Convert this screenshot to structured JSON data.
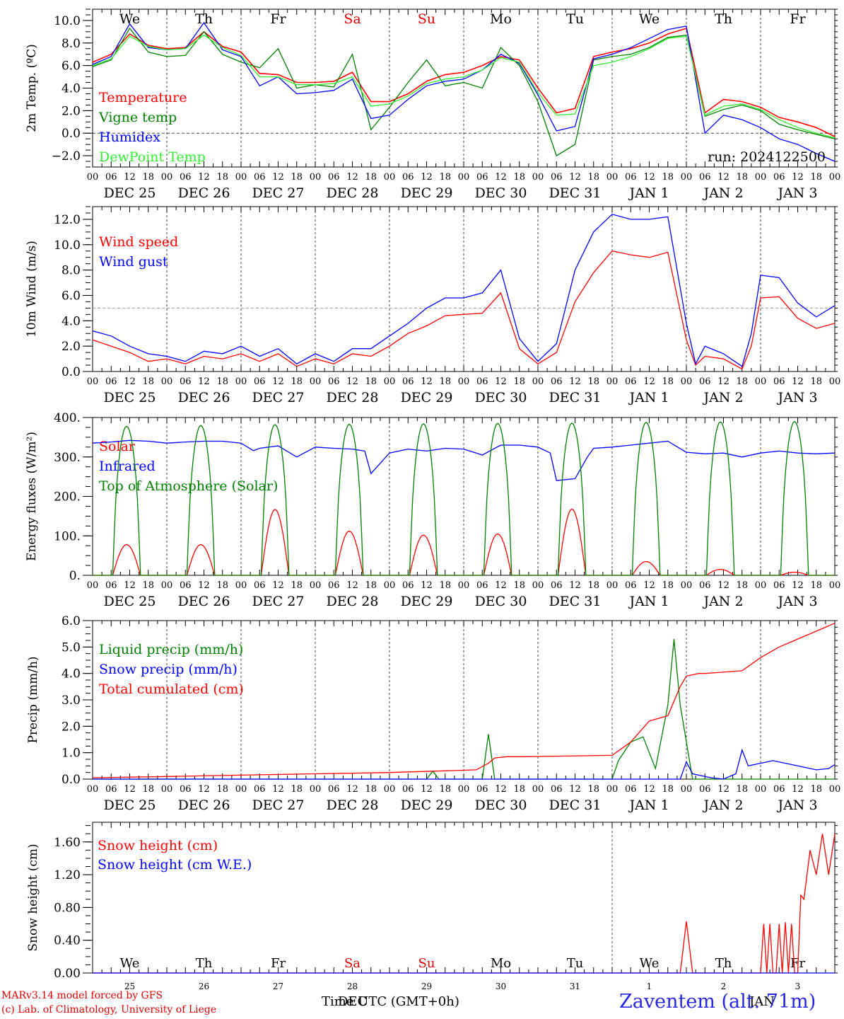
{
  "x_axis": {
    "day_labels": [
      "We",
      "Th",
      "Fr",
      "Sa",
      "Su",
      "Mo",
      "Tu",
      "We",
      "Th",
      "Fr"
    ],
    "day_colors": [
      "#000000",
      "#000000",
      "#000000",
      "#e00000",
      "#e00000",
      "#000000",
      "#000000",
      "#000000",
      "#000000",
      "#000000"
    ],
    "hour_ticks": [
      "00",
      "06",
      "12",
      "18"
    ],
    "hour_end": "00",
    "dates": [
      "DEC 25",
      "DEC 26",
      "DEC 27",
      "DEC 28",
      "DEC 29",
      "DEC 30",
      "DEC 31",
      "JAN 1",
      "JAN 2",
      "JAN 3"
    ],
    "day_numbers": [
      "25",
      "26",
      "27",
      "28",
      "29",
      "30",
      "31",
      "1",
      "2",
      "3"
    ],
    "xlabel": "Time UTC (GMT+0h)",
    "month_label_dec": "DEC",
    "month_label_jan": "JAN"
  },
  "footer": {
    "credit_line1": "MARv3.14 model forced by GFS",
    "credit_line2": "(c) Lab. of Climatology, University of Liege",
    "station": "Zaventem (alt. 71m)"
  },
  "colors": {
    "red": "#ff0000",
    "green": "#008000",
    "blue": "#0000ff",
    "lightgreen": "#33ee33",
    "grey": "#999999"
  },
  "chart_data": [
    {
      "type": "line",
      "ylabel": "2m Temp. (ºC)",
      "ylim": [
        -3.0,
        11.0
      ],
      "yticks": [
        -2.0,
        0.0,
        2.0,
        4.0,
        6.0,
        8.0,
        10.0
      ],
      "ytick_labels": [
        "−2.0",
        "0.0",
        "2.0",
        "4.0",
        "6.0",
        "8.0",
        "10.0"
      ],
      "annotation": "run: 2024122500",
      "hline": 0.0,
      "x_unit": "hours since DEC 25 00 UTC",
      "series": [
        {
          "name": "Temperature",
          "color": "#ff0000",
          "x": [
            0,
            6,
            12,
            18,
            24,
            30,
            36,
            42,
            48,
            54,
            60,
            66,
            72,
            78,
            84,
            90,
            96,
            102,
            108,
            114,
            120,
            126,
            132,
            138,
            144,
            150,
            156,
            162,
            168,
            174,
            180,
            186,
            192,
            198,
            204,
            210,
            216,
            222,
            228,
            234,
            240
          ],
          "y": [
            6.3,
            7.0,
            8.8,
            7.8,
            7.5,
            7.6,
            9.0,
            7.7,
            7.2,
            5.3,
            5.2,
            4.5,
            4.5,
            4.6,
            5.4,
            2.8,
            2.8,
            3.5,
            4.6,
            5.2,
            5.4,
            6.0,
            6.8,
            6.5,
            4.0,
            1.8,
            2.2,
            6.8,
            7.2,
            7.5,
            8.0,
            8.8,
            9.3,
            1.8,
            3.0,
            2.8,
            2.3,
            1.4,
            1.0,
            0.5,
            -0.3
          ]
        },
        {
          "name": "Vigne temp",
          "color": "#008000",
          "x": [
            0,
            6,
            12,
            18,
            24,
            30,
            36,
            42,
            48,
            54,
            60,
            66,
            72,
            78,
            84,
            90,
            96,
            102,
            108,
            114,
            120,
            126,
            132,
            138,
            144,
            150,
            156,
            162,
            168,
            174,
            180,
            186,
            192,
            198,
            204,
            210,
            216,
            222,
            228,
            234,
            240
          ],
          "y": [
            5.9,
            6.5,
            9.3,
            7.2,
            6.8,
            6.9,
            9.0,
            7.0,
            6.3,
            5.8,
            7.5,
            4.0,
            4.3,
            4.1,
            7.0,
            0.3,
            2.3,
            4.5,
            6.5,
            4.2,
            4.5,
            4.0,
            7.6,
            6.0,
            2.8,
            -2.0,
            -1.0,
            6.5,
            6.8,
            7.0,
            7.6,
            8.5,
            8.7,
            1.5,
            2.1,
            2.5,
            2.0,
            0.8,
            0.3,
            -0.1,
            -0.5
          ]
        },
        {
          "name": "Humidex",
          "color": "#0000ff",
          "x": [
            0,
            6,
            12,
            18,
            24,
            30,
            36,
            42,
            48,
            54,
            60,
            66,
            72,
            78,
            84,
            90,
            96,
            102,
            108,
            114,
            120,
            126,
            132,
            138,
            144,
            150,
            156,
            162,
            168,
            174,
            180,
            186,
            192,
            198,
            204,
            210,
            216,
            222,
            228,
            234,
            240
          ],
          "y": [
            6.1,
            6.8,
            9.7,
            7.6,
            7.4,
            7.5,
            9.8,
            7.4,
            6.8,
            4.2,
            5.0,
            3.5,
            3.6,
            3.8,
            4.8,
            1.3,
            1.6,
            3.0,
            4.2,
            4.6,
            4.8,
            5.6,
            7.0,
            6.2,
            3.4,
            0.2,
            0.6,
            6.6,
            7.0,
            7.6,
            8.4,
            9.2,
            9.5,
            0.0,
            1.6,
            1.2,
            0.5,
            -0.5,
            -1.0,
            -1.8,
            -2.5
          ]
        },
        {
          "name": "DewPoint Temp",
          "color": "#33ee33",
          "x": [
            0,
            6,
            12,
            18,
            24,
            30,
            36,
            42,
            48,
            54,
            60,
            66,
            72,
            78,
            84,
            90,
            96,
            102,
            108,
            114,
            120,
            126,
            132,
            138,
            144,
            150,
            156,
            162,
            168,
            174,
            180,
            186,
            192,
            198,
            204,
            210,
            216,
            222,
            228,
            234,
            240
          ],
          "y": [
            6.0,
            6.6,
            8.6,
            7.7,
            7.4,
            7.5,
            8.7,
            7.6,
            6.9,
            5.0,
            5.0,
            4.3,
            4.3,
            4.4,
            5.0,
            2.4,
            2.6,
            3.3,
            4.4,
            4.8,
            5.0,
            5.6,
            6.7,
            6.3,
            3.6,
            1.6,
            1.7,
            6.0,
            6.3,
            6.8,
            7.5,
            8.4,
            8.6,
            1.6,
            2.4,
            2.6,
            2.1,
            1.2,
            0.5,
            0.0,
            -0.4
          ]
        }
      ]
    },
    {
      "type": "line",
      "ylabel": "10m Wind (m/s)",
      "ylim": [
        0.0,
        13.0
      ],
      "yticks": [
        0.0,
        2.0,
        4.0,
        6.0,
        8.0,
        10.0,
        12.0
      ],
      "ytick_labels": [
        "0.0",
        "2.0",
        "4.0",
        "6.0",
        "8.0",
        "10.0",
        "12.0"
      ],
      "hline": 5.0,
      "x_unit": "hours since DEC 25 00 UTC",
      "series": [
        {
          "name": "Wind speed",
          "color": "#ff0000",
          "x": [
            0,
            6,
            12,
            18,
            24,
            30,
            36,
            42,
            48,
            54,
            60,
            66,
            72,
            78,
            84,
            90,
            96,
            102,
            108,
            114,
            120,
            126,
            132,
            138,
            144,
            150,
            156,
            162,
            168,
            174,
            180,
            186,
            192,
            195,
            198,
            204,
            210,
            213,
            216,
            222,
            228,
            234,
            240
          ],
          "y": [
            2.5,
            2.0,
            1.5,
            0.8,
            1.0,
            0.6,
            1.2,
            1.0,
            1.4,
            0.8,
            1.4,
            0.4,
            1.0,
            0.6,
            1.4,
            1.2,
            2.0,
            3.0,
            3.6,
            4.4,
            4.5,
            4.6,
            6.2,
            1.8,
            0.6,
            1.5,
            5.5,
            7.8,
            9.5,
            9.2,
            9.0,
            9.4,
            2.5,
            0.5,
            1.2,
            1.0,
            0.2,
            2.0,
            5.8,
            5.9,
            4.2,
            3.4,
            3.8
          ]
        },
        {
          "name": "Wind gust",
          "color": "#0000ff",
          "x": [
            0,
            6,
            12,
            18,
            24,
            30,
            36,
            42,
            48,
            54,
            60,
            66,
            72,
            78,
            84,
            90,
            96,
            102,
            108,
            114,
            120,
            126,
            132,
            138,
            144,
            150,
            156,
            162,
            168,
            174,
            180,
            186,
            192,
            195,
            198,
            204,
            210,
            213,
            216,
            222,
            228,
            234,
            240
          ],
          "y": [
            3.2,
            2.8,
            2.0,
            1.4,
            1.2,
            0.8,
            1.6,
            1.4,
            2.0,
            1.2,
            1.8,
            0.6,
            1.4,
            0.8,
            1.8,
            1.8,
            2.8,
            3.8,
            5.0,
            5.8,
            5.8,
            6.2,
            8.0,
            2.6,
            0.8,
            2.2,
            8.0,
            11.0,
            12.4,
            12.0,
            12.0,
            12.2,
            3.8,
            0.6,
            2.0,
            1.4,
            0.4,
            3.0,
            7.6,
            7.4,
            5.4,
            4.3,
            5.2
          ]
        }
      ]
    },
    {
      "type": "line",
      "ylabel": "Energy fluxes (W/m²)",
      "ylim": [
        0,
        400
      ],
      "yticks": [
        0,
        100,
        200,
        300,
        400
      ],
      "ytick_labels": [
        "0.",
        "100.",
        "200.",
        "300.",
        "400."
      ],
      "x_unit": "hours since DEC 25 00 UTC",
      "series": [
        {
          "name": "Solar",
          "color": "#ff0000",
          "peak_hours": [
            11,
            35,
            59,
            83,
            107,
            131,
            155,
            179,
            203,
            227
          ],
          "peaks": [
            78,
            78,
            167,
            112,
            102,
            105,
            168,
            35,
            15,
            8
          ]
        },
        {
          "name": "Infrared",
          "color": "#0000ff",
          "x": [
            0,
            6,
            12,
            18,
            24,
            30,
            36,
            42,
            48,
            52,
            54,
            60,
            66,
            72,
            78,
            84,
            88,
            90,
            96,
            102,
            108,
            114,
            120,
            126,
            132,
            138,
            144,
            148,
            150,
            156,
            160,
            162,
            168,
            174,
            180,
            186,
            192,
            198,
            204,
            210,
            216,
            222,
            228,
            234,
            240
          ],
          "y": [
            335,
            338,
            342,
            340,
            335,
            338,
            340,
            340,
            335,
            316,
            322,
            328,
            300,
            325,
            322,
            320,
            315,
            258,
            310,
            320,
            315,
            322,
            320,
            305,
            330,
            330,
            325,
            310,
            240,
            245,
            300,
            322,
            325,
            330,
            335,
            340,
            312,
            308,
            310,
            300,
            310,
            315,
            310,
            308,
            310
          ]
        },
        {
          "name": "Top of Atmosphere (Solar)",
          "color": "#008000",
          "peak_hours": [
            11,
            35,
            59,
            83,
            107,
            131,
            155,
            179,
            203,
            227
          ],
          "peaks": [
            378,
            380,
            382,
            383,
            384,
            385,
            386,
            388,
            389,
            390
          ]
        }
      ]
    },
    {
      "type": "line",
      "ylabel": "Precip (mm/h)",
      "ylim": [
        0.0,
        6.0
      ],
      "yticks": [
        0.0,
        1.0,
        2.0,
        3.0,
        4.0,
        5.0,
        6.0
      ],
      "ytick_labels": [
        "0.0",
        "1.0",
        "2.0",
        "3.0",
        "4.0",
        "5.0",
        "6.0"
      ],
      "x_unit": "hours since DEC 25 00 UTC",
      "series": [
        {
          "name": "Liquid precip (mm/h)",
          "color": "#008000",
          "x": [
            0,
            96,
            108,
            110,
            112,
            126,
            128,
            130,
            132,
            134,
            140,
            168,
            170,
            174,
            178,
            180,
            182,
            186,
            188,
            190,
            194,
            198,
            204,
            210,
            216,
            240
          ],
          "y": [
            0,
            0,
            0,
            0.3,
            0,
            0,
            1.7,
            0,
            0,
            0,
            0,
            0,
            0.7,
            1.4,
            1.6,
            1.0,
            0.4,
            2.8,
            5.3,
            2.8,
            0,
            0,
            0,
            0,
            0,
            0
          ]
        },
        {
          "name": "Snow precip (mm/h)",
          "color": "#0000ff",
          "x": [
            0,
            140,
            190,
            192,
            194,
            200,
            204,
            208,
            210,
            212,
            216,
            220,
            228,
            234,
            238,
            240
          ],
          "y": [
            0,
            0,
            0,
            0.65,
            0.2,
            0.05,
            0,
            0.2,
            1.1,
            0.5,
            0.6,
            0.7,
            0.5,
            0.35,
            0.4,
            0.55
          ]
        },
        {
          "name": "Total cumulated (cm)",
          "color": "#ff0000",
          "x": [
            0,
            24,
            48,
            72,
            96,
            110,
            124,
            128,
            130,
            134,
            140,
            168,
            174,
            180,
            186,
            190,
            192,
            196,
            198,
            210,
            216,
            222,
            228,
            234,
            240
          ],
          "y": [
            0.05,
            0.1,
            0.15,
            0.2,
            0.25,
            0.3,
            0.35,
            0.6,
            0.8,
            0.85,
            0.85,
            0.9,
            1.4,
            2.2,
            2.4,
            3.5,
            3.9,
            4.0,
            4.0,
            4.1,
            4.6,
            5.0,
            5.3,
            5.6,
            5.9
          ]
        }
      ]
    },
    {
      "type": "line",
      "ylabel": "Snow height (cm)",
      "ylim": [
        0.0,
        1.84
      ],
      "yticks": [
        0.0,
        0.4,
        0.8,
        1.2,
        1.6
      ],
      "ytick_labels": [
        "0.00",
        "0.40",
        "0.80",
        "1.20",
        "1.60"
      ],
      "x_unit": "hours since DEC 25 00 UTC",
      "series": [
        {
          "name": "Snow height (cm)",
          "color": "#ff0000",
          "x": [
            0,
            190,
            192,
            194,
            216,
            217,
            218,
            219,
            220,
            221,
            222,
            223,
            224,
            225,
            226,
            227,
            228,
            229,
            230,
            232,
            234,
            236,
            238,
            240
          ],
          "y": [
            0,
            0,
            0.63,
            0,
            0,
            0.6,
            0,
            0.6,
            0,
            0,
            0.6,
            0,
            0.62,
            0,
            0.6,
            0,
            0,
            0.95,
            0.9,
            1.5,
            1.2,
            1.7,
            1.2,
            1.7
          ]
        },
        {
          "name": "Snow height (cm W.E.)",
          "color": "#0000ff",
          "x": [
            0,
            240
          ],
          "y": [
            0,
            0
          ]
        }
      ]
    }
  ]
}
